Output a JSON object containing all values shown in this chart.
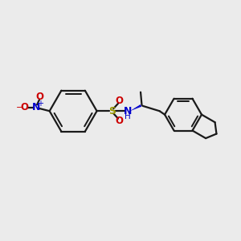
{
  "bg_color": "#ebebeb",
  "line_color": "#1a1a1a",
  "bond_lw": 1.6,
  "N_color": "#0000cc",
  "O_color": "#cc0000",
  "S_color": "#999900",
  "figsize": [
    3.0,
    3.0
  ],
  "dpi": 100,
  "xlim": [
    0,
    10
  ],
  "ylim": [
    0,
    10
  ]
}
